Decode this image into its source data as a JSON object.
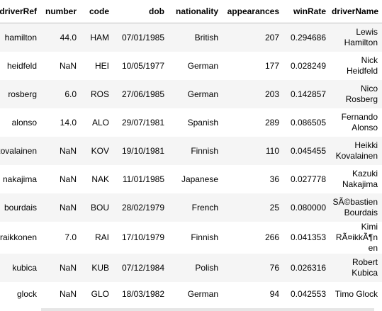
{
  "table": {
    "columns": [
      "driverRef",
      "number",
      "code",
      "dob",
      "nationality",
      "appearances",
      "winRate",
      "driverName"
    ],
    "rows": [
      [
        "hamilton",
        "44.0",
        "HAM",
        "07/01/1985",
        "British",
        "207",
        "0.294686",
        "Lewis Hamilton"
      ],
      [
        "heidfeld",
        "NaN",
        "HEI",
        "10/05/1977",
        "German",
        "177",
        "0.028249",
        "Nick Heidfeld"
      ],
      [
        "rosberg",
        "6.0",
        "ROS",
        "27/06/1985",
        "German",
        "203",
        "0.142857",
        "Nico Rosberg"
      ],
      [
        "alonso",
        "14.0",
        "ALO",
        "29/07/1981",
        "Spanish",
        "289",
        "0.086505",
        "Fernando Alonso"
      ],
      [
        "kovalainen",
        "NaN",
        "KOV",
        "19/10/1981",
        "Finnish",
        "110",
        "0.045455",
        "Heikki Kovalainen"
      ],
      [
        "nakajima",
        "NaN",
        "NAK",
        "11/01/1985",
        "Japanese",
        "36",
        "0.027778",
        "Kazuki Nakajima"
      ],
      [
        "bourdais",
        "NaN",
        "BOU",
        "28/02/1979",
        "French",
        "25",
        "0.080000",
        "SÃ©bastien Bourdais"
      ],
      [
        "raikkonen",
        "7.0",
        "RAI",
        "17/10/1979",
        "Finnish",
        "266",
        "0.041353",
        "Kimi RÃ¤ikkÃ¶nen"
      ],
      [
        "kubica",
        "NaN",
        "KUB",
        "07/12/1984",
        "Polish",
        "76",
        "0.026316",
        "Robert Kubica"
      ],
      [
        "glock",
        "NaN",
        "GLO",
        "18/03/1982",
        "German",
        "94",
        "0.042553",
        "Timo Glock"
      ]
    ]
  }
}
